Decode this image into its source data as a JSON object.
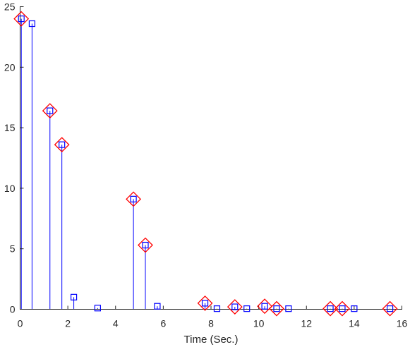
{
  "chart_data": {
    "type": "stem",
    "title": "",
    "xlabel": "Time (Sec.)",
    "ylabel": "",
    "xlim": [
      0,
      16
    ],
    "ylim": [
      0,
      25
    ],
    "xticks": [
      0,
      2,
      4,
      6,
      8,
      10,
      12,
      14,
      16
    ],
    "yticks": [
      0,
      5,
      10,
      15,
      20,
      25
    ],
    "grid": false,
    "legend": "none",
    "colors": {
      "stem": "#0000ff",
      "square_marker": "#0000ff",
      "diamond_marker": "#ff0000",
      "axis": "#262626"
    },
    "series": [
      {
        "marker": "square",
        "x": [
          0.05,
          0.5,
          1.25,
          1.75,
          2.25,
          3.25,
          4.75,
          5.25,
          5.75,
          7.75,
          8.25,
          9.0,
          9.5,
          10.25,
          10.75,
          11.25,
          13.0,
          13.5,
          14.0,
          15.5
        ],
        "y": [
          24.0,
          23.6,
          16.4,
          13.6,
          1.0,
          0.1,
          9.1,
          5.3,
          0.25,
          0.5,
          0.05,
          0.2,
          0.05,
          0.25,
          0.05,
          0.05,
          0.05,
          0.05,
          0.05,
          0.05
        ]
      },
      {
        "marker": "diamond",
        "x": [
          0.05,
          1.25,
          1.75,
          4.75,
          5.25,
          7.75,
          9.0,
          10.25,
          10.75,
          13.0,
          13.5,
          15.5
        ],
        "y": [
          24.0,
          16.4,
          13.6,
          9.1,
          5.3,
          0.5,
          0.2,
          0.25,
          0.05,
          0.05,
          0.05,
          0.05
        ]
      }
    ]
  }
}
